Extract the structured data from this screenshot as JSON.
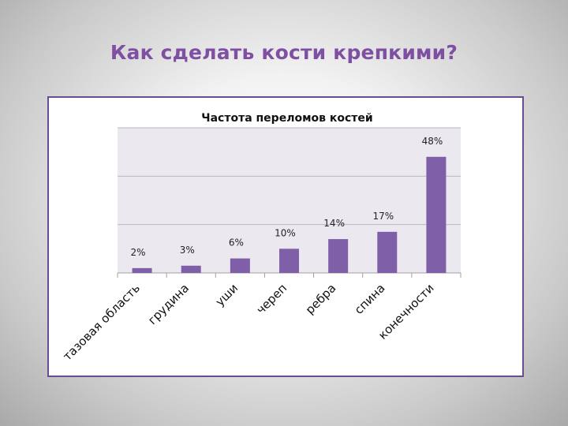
{
  "slide": {
    "title": "Как сделать кости крепкими?"
  },
  "colors": {
    "bar": "#7f5fa8",
    "plot_bg": "#ece8ef",
    "grid": "#b9b9b9",
    "title": "#7e4fa3",
    "frame": "#6a4c93"
  },
  "chart_data": {
    "type": "bar",
    "title": "Частота переломов костей",
    "xlabel": "",
    "ylabel": "",
    "categories": [
      "тазовая область",
      "грудина",
      "уши",
      "череп",
      "ребра",
      "спина",
      "конечности"
    ],
    "values": [
      2,
      3,
      6,
      10,
      14,
      17,
      48
    ],
    "data_labels": [
      "2%",
      "3%",
      "6%",
      "10%",
      "14%",
      "17%",
      "48%"
    ],
    "ylim": [
      0,
      60
    ],
    "grid": true,
    "legend": "none"
  }
}
